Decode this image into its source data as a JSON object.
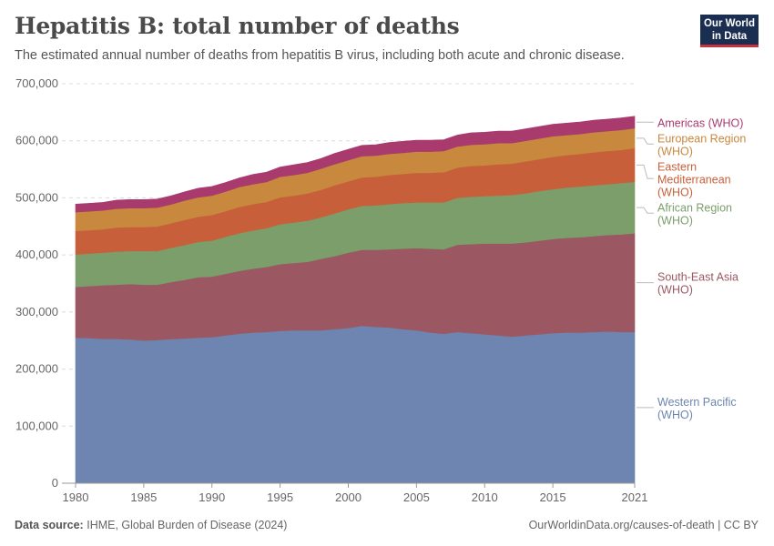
{
  "header": {
    "title": "Hepatitis B: total number of deaths",
    "subtitle": "The estimated annual number of deaths from hepatitis B virus, including both acute and chronic disease."
  },
  "logo": {
    "line1": "Our World",
    "line2": "in Data"
  },
  "footer": {
    "source_label": "Data source:",
    "source_text": "IHME, Global Burden of Disease (2024)",
    "right_text": "OurWorldinData.org/causes-of-death | CC BY"
  },
  "chart_data": {
    "type": "area",
    "stacked": true,
    "title": "Hepatitis B: total number of deaths",
    "x": [
      1980,
      1981,
      1982,
      1983,
      1984,
      1985,
      1986,
      1987,
      1988,
      1989,
      1990,
      1991,
      1992,
      1993,
      1994,
      1995,
      1996,
      1997,
      1998,
      1999,
      2000,
      2001,
      2002,
      2003,
      2004,
      2005,
      2006,
      2007,
      2008,
      2009,
      2010,
      2011,
      2012,
      2013,
      2014,
      2015,
      2016,
      2017,
      2018,
      2019,
      2020,
      2021
    ],
    "xlim": [
      1979,
      2021
    ],
    "xticks": [
      "1980",
      "1985",
      "1990",
      "1995",
      "2000",
      "2005",
      "2010",
      "2015",
      "2021"
    ],
    "ylim": [
      0,
      700000
    ],
    "yticks": [
      "0",
      "100,000",
      "200,000",
      "300,000",
      "400,000",
      "500,000",
      "600,000",
      "700,000"
    ],
    "grid": "horizontal dashed",
    "legend_placement": "right, inline labels",
    "series": [
      {
        "name": "Western Pacific (WHO)",
        "label_lines": [
          "Western Pacific",
          "(WHO)"
        ],
        "color": "#6d85b0",
        "values": [
          255000,
          254500,
          253000,
          253000,
          252000,
          250000,
          251000,
          252500,
          253500,
          255000,
          256000,
          259000,
          262000,
          264000,
          265000,
          267000,
          268000,
          268000,
          268000,
          270000,
          272000,
          276000,
          274000,
          273000,
          270000,
          268000,
          264000,
          262000,
          265000,
          263000,
          261000,
          259000,
          257000,
          259000,
          261000,
          263000,
          264000,
          264000,
          265000,
          266000,
          265000,
          265000
        ]
      },
      {
        "name": "South-East Asia (WHO)",
        "label_lines": [
          "South-East Asia",
          "(WHO)"
        ],
        "color": "#9b5862",
        "values": [
          89000,
          91000,
          94000,
          95000,
          97000,
          98000,
          97000,
          100000,
          103000,
          106000,
          106000,
          108000,
          110000,
          112000,
          114000,
          117000,
          118000,
          120000,
          125000,
          128000,
          132000,
          133000,
          135000,
          137000,
          141000,
          144000,
          147000,
          148000,
          153000,
          156000,
          159000,
          161000,
          163000,
          163000,
          164000,
          165000,
          166000,
          167000,
          168000,
          169000,
          171000,
          173000
        ]
      },
      {
        "name": "African Region (WHO)",
        "label_lines": [
          "African Region",
          "(WHO)"
        ],
        "color": "#7b9e6b",
        "values": [
          57000,
          57000,
          57000,
          58000,
          58000,
          59000,
          59000,
          60000,
          61000,
          62000,
          63000,
          65000,
          66000,
          67000,
          68000,
          70000,
          71000,
          72000,
          73000,
          75000,
          76000,
          77000,
          78000,
          79000,
          80000,
          80000,
          81000,
          82000,
          82000,
          83000,
          83000,
          84000,
          85000,
          86000,
          87000,
          87000,
          88000,
          89000,
          89000,
          89000,
          90000,
          90000
        ]
      },
      {
        "name": "Eastern Mediterranean (WHO)",
        "label_lines": [
          "Eastern",
          "Mediterranean",
          "(WHO)"
        ],
        "color": "#c7603a",
        "values": [
          41000,
          41000,
          41000,
          42000,
          42000,
          42000,
          43000,
          43000,
          44000,
          44000,
          45000,
          45000,
          46000,
          46000,
          46000,
          47000,
          47000,
          48000,
          48000,
          49000,
          49000,
          50000,
          50000,
          51000,
          51000,
          52000,
          52000,
          53000,
          53000,
          54000,
          54000,
          55000,
          55000,
          56000,
          56000,
          57000,
          57000,
          57000,
          58000,
          58000,
          58000,
          59000
        ]
      },
      {
        "name": "European Region (WHO)",
        "label_lines": [
          "European Region",
          "(WHO)"
        ],
        "color": "#c8883e",
        "values": [
          33000,
          33000,
          33000,
          33000,
          33000,
          33000,
          33000,
          33000,
          34000,
          34000,
          34000,
          34000,
          35000,
          35000,
          35000,
          36000,
          36000,
          36000,
          37000,
          37000,
          37000,
          37000,
          37000,
          37000,
          37000,
          37000,
          37000,
          37000,
          37000,
          37000,
          37000,
          37000,
          36000,
          36000,
          36000,
          36000,
          35000,
          35000,
          35000,
          35000,
          35000,
          35000
        ]
      },
      {
        "name": "Americas (WHO)",
        "label_lines": [
          "Americas (WHO)"
        ],
        "color": "#a83a6e",
        "values": [
          14000,
          14000,
          14000,
          15000,
          15000,
          15000,
          15000,
          15000,
          15000,
          16000,
          16000,
          16000,
          16000,
          17000,
          17000,
          17000,
          18000,
          18000,
          18000,
          19000,
          19000,
          19000,
          19000,
          20000,
          20000,
          20000,
          20000,
          20000,
          20000,
          21000,
          21000,
          21000,
          21000,
          21000,
          21000,
          21000,
          21000,
          21000,
          21000,
          21000,
          21000,
          21000
        ]
      }
    ]
  }
}
